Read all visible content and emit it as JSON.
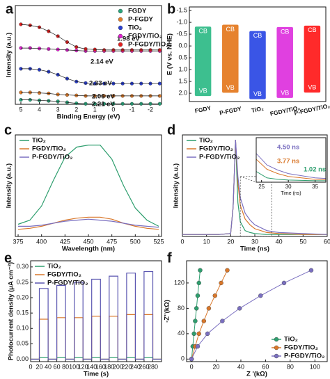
{
  "chart_data": [
    {
      "type": "scatter",
      "panel": "a",
      "x_label": "Binding Energy (eV)",
      "y_label": "Intensity (a.u.)",
      "xlim": [
        5.3,
        -2.6
      ],
      "ylim": [
        0,
        10
      ],
      "xticks": [
        5,
        4,
        3,
        2,
        1,
        0,
        -1,
        -2
      ],
      "legend": "upper right",
      "x": [
        5,
        4.5,
        4,
        3.5,
        3,
        2.5,
        2,
        1.5,
        1,
        0.5,
        0,
        -0.5,
        -1,
        -1.5,
        -2,
        -2.5
      ],
      "series": [
        {
          "name": "FGDY",
          "color": "#2aa57c",
          "values": [
            0.45,
            0.45,
            0.4,
            0.35,
            0.3,
            0.2,
            0.1,
            0.05,
            0.05,
            0.05,
            0.05,
            0.05,
            0.05,
            0.05,
            0.05,
            0.05
          ]
        },
        {
          "name": "P-FGDY",
          "color": "#e07b28",
          "values": [
            1.2,
            1.2,
            1.15,
            1.1,
            1.0,
            0.95,
            0.9,
            0.85,
            0.85,
            0.85,
            0.85,
            0.85,
            0.85,
            0.85,
            0.85,
            0.85
          ]
        },
        {
          "name": "TiO₂",
          "color": "#2a3fd0",
          "values": [
            3.6,
            3.6,
            3.5,
            3.3,
            3.0,
            2.6,
            2.3,
            2.15,
            2.1,
            2.1,
            2.1,
            2.1,
            2.1,
            2.1,
            2.1,
            2.1
          ]
        },
        {
          "name": "FGDY/TiO₂",
          "color": "#e020d0",
          "values": [
            5.7,
            5.7,
            5.65,
            5.6,
            5.55,
            5.5,
            5.45,
            5.4,
            5.4,
            5.4,
            5.4,
            5.4,
            5.4,
            5.4,
            5.4,
            5.4
          ]
        },
        {
          "name": "P-FGDY/TiO₂",
          "color": "#e02020",
          "values": [
            8.1,
            8.0,
            7.8,
            7.4,
            6.9,
            6.3,
            5.8,
            5.6,
            5.55,
            5.5,
            5.5,
            5.5,
            5.5,
            5.5,
            5.5,
            5.5
          ]
        }
      ],
      "annotations": [
        "1.98 eV",
        "2.14 eV",
        "2.33 eV",
        "2.06 eV",
        "2.21 eV"
      ]
    },
    {
      "type": "bar",
      "panel": "b",
      "y_label": "E (V vs. NHE)",
      "ylim": [
        2.35,
        -1.65
      ],
      "yticks": [
        -1.5,
        {
          "value": -1,
          "label": "-1.0"
        },
        -0.5,
        {
          "value": 0,
          "label": "0.0"
        },
        0.5,
        {
          "value": 1,
          "label": "1.0"
        },
        1.5,
        {
          "value": 2,
          "label": "2.0"
        }
      ],
      "categories": [
        "FGDY",
        "P-FGDY",
        "TiO₂",
        "FGDY/TiO₂",
        "P-FGDY/TiO₂"
      ],
      "colors": [
        "#3dbf8f",
        "#e6822e",
        "#3a55e6",
        "#e040e0",
        "#ff2a2a"
      ],
      "band_labels": [
        "CB",
        "VB"
      ],
      "series": [
        {
          "values": [
            -0.82,
            -0.9,
            -0.63,
            -0.8,
            -0.86
          ]
        },
        {
          "values": [
            2.12,
            1.98,
            2.25,
            2.2,
            1.97
          ]
        }
      ]
    },
    {
      "type": "line",
      "panel": "c",
      "x_label": "Wavelength (nm)",
      "y_label": "Intensity (a.u.)",
      "xlim": [
        372,
        528
      ],
      "ylim": [
        0,
        1
      ],
      "xticks": [
        375,
        400,
        425,
        450,
        475,
        500,
        525
      ],
      "legend": "upper left",
      "x": [
        375,
        387.5,
        400,
        412.5,
        425,
        437.5,
        450,
        462.5,
        475,
        487.5,
        500,
        512.5,
        525
      ],
      "series": [
        {
          "name": "TiO₂",
          "color": "#2e9e6e",
          "values": [
            0.12,
            0.16,
            0.3,
            0.55,
            0.78,
            0.88,
            0.9,
            0.9,
            0.76,
            0.5,
            0.28,
            0.16,
            0.1
          ]
        },
        {
          "name": "FGDY/TiO₂",
          "color": "#d9772a",
          "values": [
            0.07,
            0.08,
            0.1,
            0.13,
            0.16,
            0.18,
            0.19,
            0.19,
            0.17,
            0.13,
            0.1,
            0.08,
            0.07
          ]
        },
        {
          "name": "P-FGDY/TiO₂",
          "color": "#7a6fc0",
          "values": [
            0.1,
            0.1,
            0.11,
            0.13,
            0.15,
            0.16,
            0.17,
            0.16,
            0.15,
            0.13,
            0.11,
            0.1,
            0.09
          ]
        }
      ]
    },
    {
      "type": "line",
      "panel": "d",
      "x_label": "Time (ns)",
      "y_label": "Intensity (a.u.)",
      "xlim": [
        0,
        60
      ],
      "ylim": [
        0,
        1.05
      ],
      "xticks": [
        0,
        10,
        20,
        30,
        40,
        50,
        60
      ],
      "legend": "upper left",
      "x": [
        0,
        5,
        10,
        15,
        20,
        21,
        22,
        23,
        24,
        26,
        28,
        30,
        35,
        40,
        50,
        60
      ],
      "series": [
        {
          "name": "TiO₂",
          "color": "#2e9e6e",
          "values": [
            0.02,
            0.02,
            0.02,
            0.02,
            0.03,
            0.3,
            1.0,
            0.35,
            0.15,
            0.06,
            0.04,
            0.03,
            0.02,
            0.02,
            0.02,
            0.02
          ]
        },
        {
          "name": "FGDY/TiO₂",
          "color": "#d9772a",
          "values": [
            0.02,
            0.02,
            0.02,
            0.02,
            0.03,
            0.3,
            1.0,
            0.55,
            0.32,
            0.18,
            0.12,
            0.08,
            0.04,
            0.03,
            0.02,
            0.02
          ]
        },
        {
          "name": "P-FGDY/TiO₂",
          "color": "#7a6fc0",
          "values": [
            0.02,
            0.02,
            0.02,
            0.02,
            0.03,
            0.3,
            1.0,
            0.62,
            0.4,
            0.24,
            0.17,
            0.12,
            0.06,
            0.04,
            0.03,
            0.02
          ]
        }
      ],
      "inset": {
        "x_label": "Time (ns)",
        "xlim": [
          24,
          37
        ],
        "ylim": [
          0,
          0.62
        ],
        "xticks": [
          25,
          30,
          35
        ],
        "annotations": [
          "4.50 ns",
          "3.77 ns",
          "1.02 ns"
        ]
      }
    },
    {
      "type": "line",
      "panel": "e",
      "x_label": "Time (s)",
      "y_label": "Photocurrent density (μA cm⁻²)",
      "xlim": [
        0,
        300
      ],
      "ylim": [
        -0.008,
        0.32
      ],
      "legend": "upper left",
      "xticks": [
        0,
        20,
        40,
        60,
        80,
        100,
        120,
        140,
        160,
        180,
        200,
        220,
        240,
        260,
        280
      ],
      "yticks": [
        {
          "value": 0,
          "label": "0.00"
        },
        0.05,
        {
          "value": 0.1,
          "label": "0.10"
        },
        0.15,
        {
          "value": 0.2,
          "label": "0.20"
        },
        0.25,
        {
          "value": 0.3,
          "label": "0.30"
        }
      ],
      "x": [
        0,
        20,
        20,
        40,
        40,
        60,
        60,
        80,
        80,
        100,
        100,
        120,
        120,
        140,
        140,
        160,
        160,
        180,
        180,
        200,
        200,
        220,
        220,
        240,
        240,
        260,
        260,
        280,
        280,
        300,
        300,
        320,
        320,
        300
      ],
      "series": [
        {
          "name": "TiO₂",
          "color": "#2e9e6e",
          "values": [
            0,
            0,
            0.005,
            0.005,
            0,
            0,
            0.005,
            0.005,
            0,
            0,
            0.005,
            0.005,
            0,
            0,
            0.005,
            0.005,
            0,
            0,
            0.005,
            0.005,
            0,
            0,
            0.005,
            0.005,
            0,
            0,
            0.005,
            0.005,
            0,
            0,
            null,
            null,
            null,
            0
          ]
        },
        {
          "name": "FGDY/TiO₂",
          "color": "#d9772a",
          "values": [
            0,
            0,
            0.13,
            0.13,
            0,
            0,
            0.135,
            0.135,
            0,
            0,
            0.135,
            0.135,
            0,
            0,
            0.14,
            0.14,
            0,
            0,
            0.14,
            0.14,
            0,
            0,
            0.145,
            0.145,
            0,
            0,
            0.145,
            0.145,
            0,
            0,
            null,
            null,
            null,
            0
          ]
        },
        {
          "name": "P-FGDY/TiO₂",
          "color": "#5a55b0",
          "values": [
            0,
            0,
            0.23,
            0.23,
            0,
            0,
            0.24,
            0.24,
            0,
            0,
            0.25,
            0.25,
            0,
            0,
            0.26,
            0.26,
            0,
            0,
            0.27,
            0.27,
            0,
            0,
            0.28,
            0.28,
            0,
            0,
            0.285,
            0.285,
            0,
            0,
            null,
            null,
            null,
            0
          ]
        }
      ]
    },
    {
      "type": "scatter",
      "panel": "f",
      "x_label": "Z '(kΩ)",
      "y_label": "-Z''(kΩ)",
      "lines": true,
      "xlim": [
        -4,
        110
      ],
      "ylim": [
        -4,
        155
      ],
      "xticks": [
        0,
        20,
        40,
        60,
        80,
        100
      ],
      "yticks": [
        0,
        40,
        80,
        120
      ],
      "legend": "lower right",
      "series": [
        {
          "name": "TiO₂",
          "color": "#2e9e6e",
          "x": [
            0,
            1,
            2,
            3,
            4,
            5,
            6,
            7
          ],
          "values": [
            0,
            20,
            40,
            60,
            80,
            100,
            120,
            140
          ]
        },
        {
          "name": "FGDY/TiO₂",
          "color": "#d9772a",
          "x": [
            0,
            3,
            6,
            10,
            14,
            19,
            24,
            29
          ],
          "values": [
            0,
            20,
            40,
            60,
            80,
            100,
            120,
            140
          ]
        },
        {
          "name": "P-FGDY/TiO₂",
          "color": "#7a6fc0",
          "x": [
            0,
            5,
            13,
            25,
            39,
            56,
            75,
            97
          ],
          "values": [
            0,
            20,
            40,
            60,
            80,
            100,
            120,
            140
          ]
        }
      ]
    }
  ]
}
